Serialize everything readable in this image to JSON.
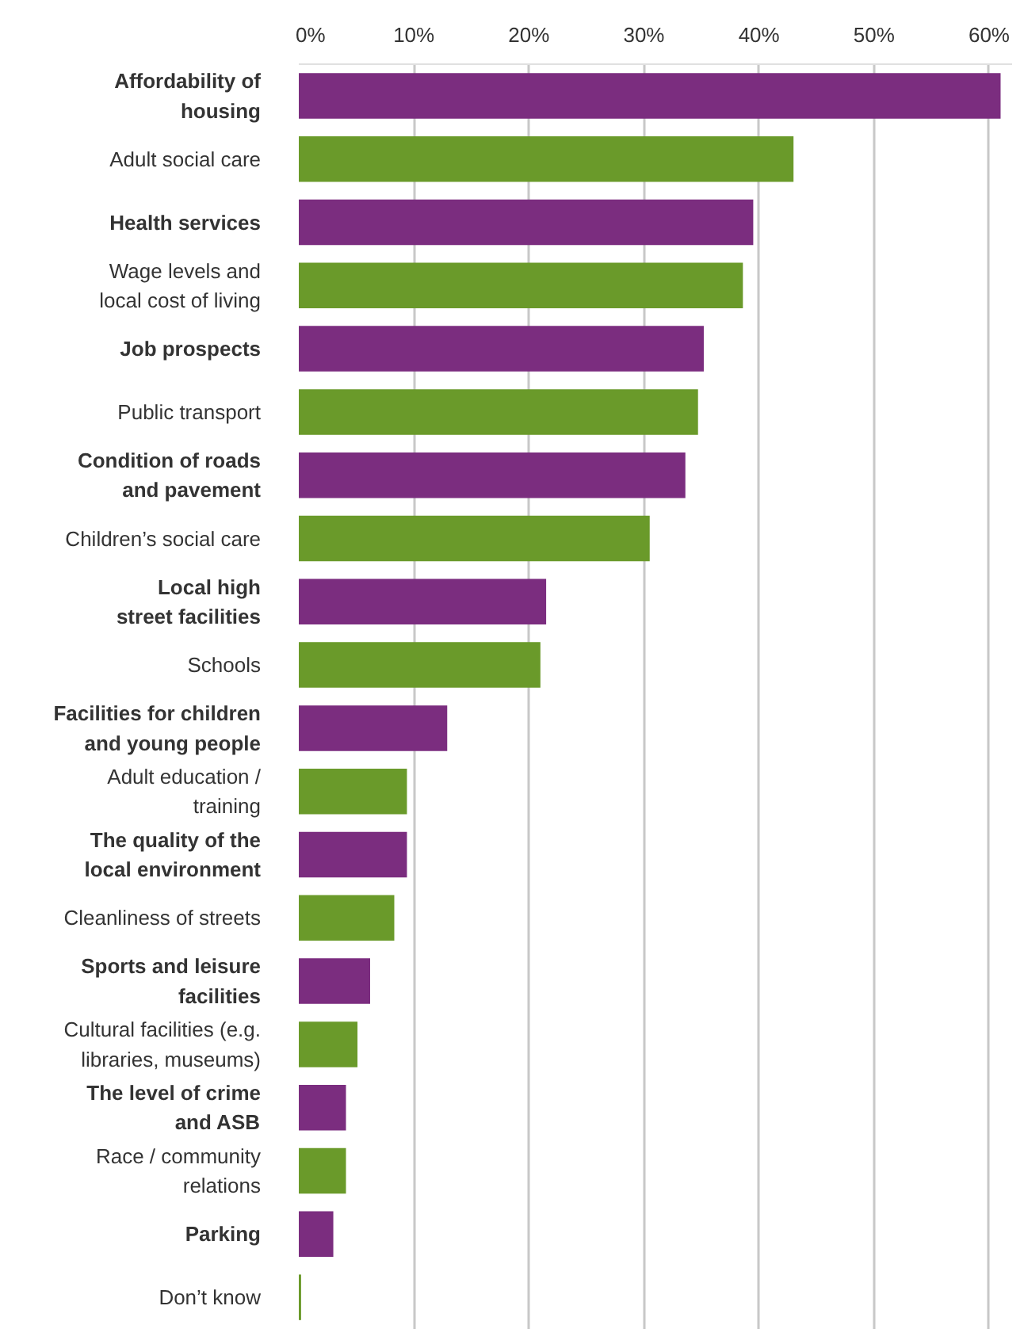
{
  "chart_data": {
    "type": "bar",
    "orientation": "horizontal",
    "categories": [
      "Affordability of\nhousing",
      "Adult social care",
      "Health services",
      "Wage levels and\nlocal cost of living",
      "Job prospects",
      "Public transport",
      "Condition of roads\nand pavement",
      "Children’s social care",
      "Local high\nstreet facilities",
      "Schools",
      "Facilities for children\nand young people",
      "Adult education /\ntraining",
      "The quality of the\nlocal environment",
      "Cleanliness of streets",
      "Sports and leisure\nfacilities",
      "Cultural facilities (e.g.\nlibraries, museums)",
      "The level of crime\nand ASB",
      "Race / community\nrelations",
      "Parking",
      "Don’t know"
    ],
    "values": [
      61,
      43,
      39.5,
      38.6,
      35.2,
      34.7,
      33.6,
      30.5,
      21.5,
      21,
      12.9,
      9.4,
      9.4,
      8.3,
      6.2,
      5.1,
      4.1,
      4.1,
      3,
      0.2
    ],
    "colors": [
      "#7b2d7f",
      "#6a9a2a",
      "#7b2d7f",
      "#6a9a2a",
      "#7b2d7f",
      "#6a9a2a",
      "#7b2d7f",
      "#6a9a2a",
      "#7b2d7f",
      "#6a9a2a",
      "#7b2d7f",
      "#6a9a2a",
      "#7b2d7f",
      "#6a9a2a",
      "#7b2d7f",
      "#6a9a2a",
      "#7b2d7f",
      "#6a9a2a",
      "#7b2d7f",
      "#6a9a2a"
    ],
    "xlim": [
      0,
      62
    ],
    "xticks": [
      {
        "value": 0,
        "label": "0%"
      },
      {
        "value": 10,
        "label": "10%"
      },
      {
        "value": 20,
        "label": "20%"
      },
      {
        "value": 30,
        "label": "30%"
      },
      {
        "value": 40,
        "label": "40%"
      },
      {
        "value": 50,
        "label": "50%"
      },
      {
        "value": 60,
        "label": "60%"
      }
    ],
    "grid": "x"
  }
}
